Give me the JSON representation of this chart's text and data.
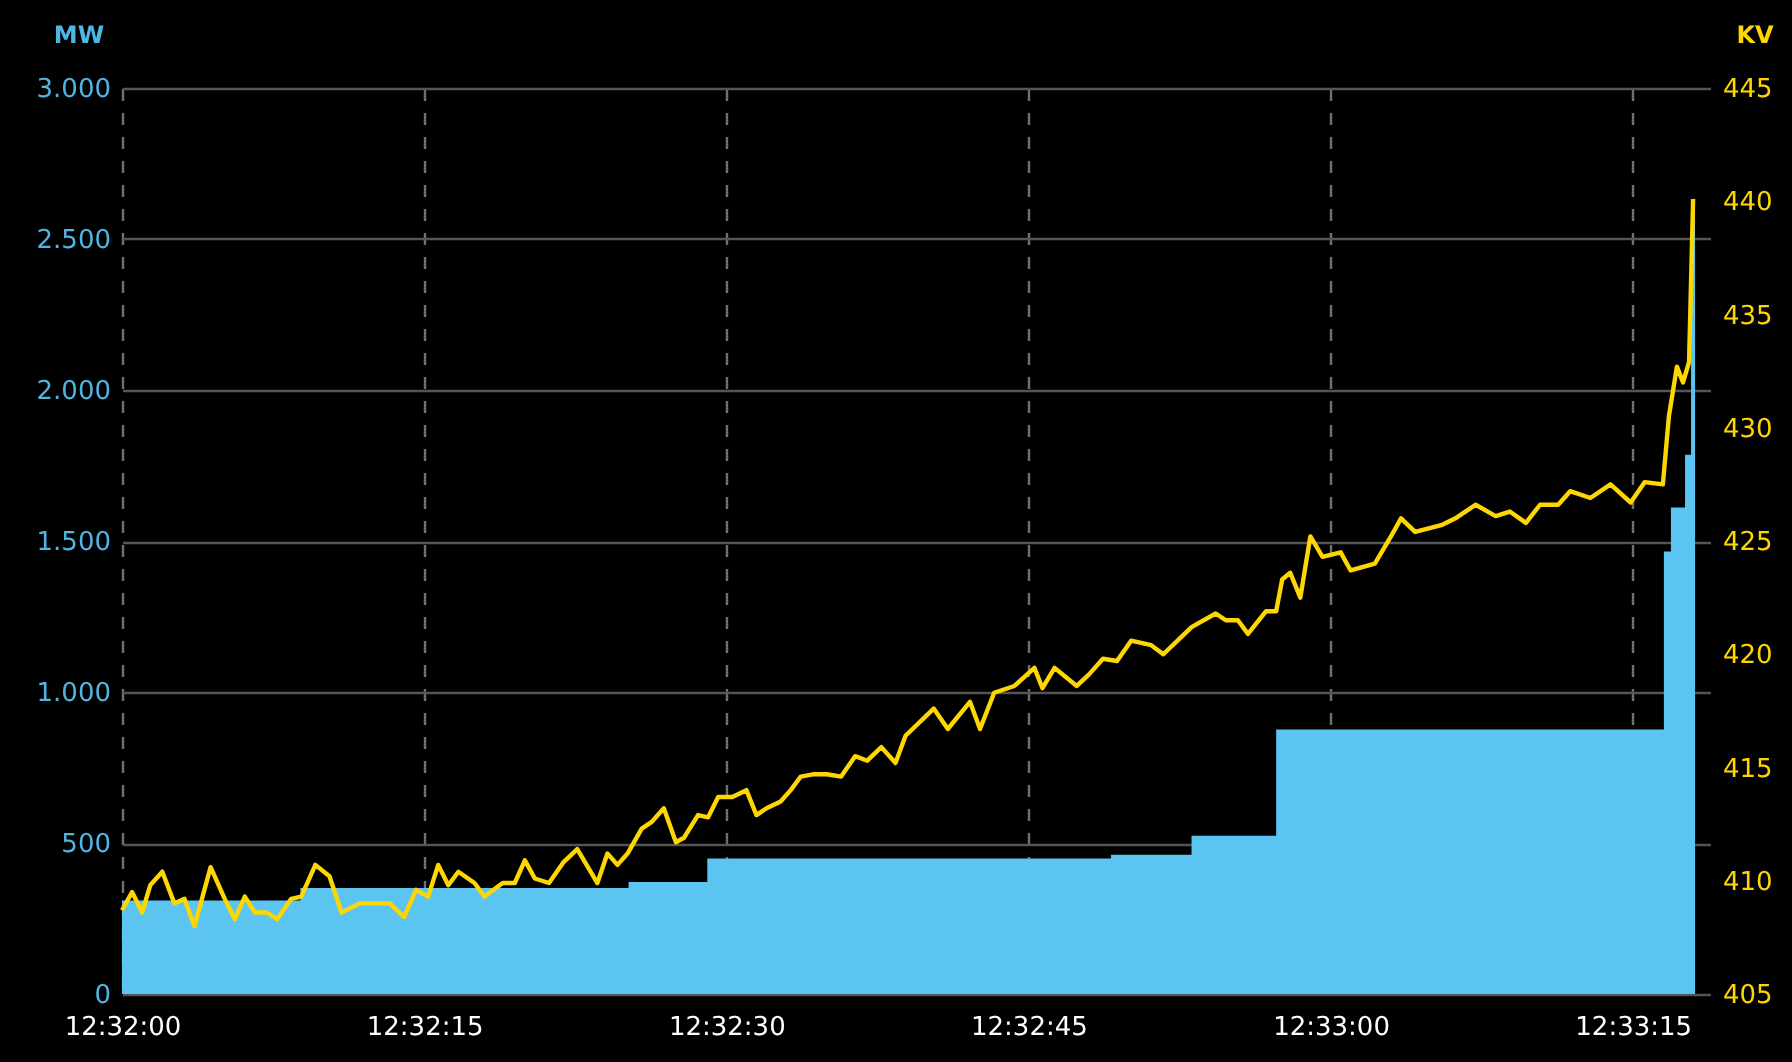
{
  "chart_data": {
    "type": "area",
    "ylabel": "MW",
    "y2label": "KV",
    "xlim": [
      12.533333,
      12.555233
    ],
    "xticks": [
      {
        "value": 12.533333,
        "label": "12:32:00"
      },
      {
        "value": 12.5375,
        "label": "12:32:15"
      },
      {
        "value": 12.541667,
        "label": "12:32:30"
      },
      {
        "value": 12.545833,
        "label": "12:32:45"
      },
      {
        "value": 12.55,
        "label": "12:33:00"
      },
      {
        "value": 12.554167,
        "label": "12:33:15"
      }
    ],
    "ylim": [
      0,
      3000
    ],
    "yticks": [
      0,
      {
        "value": 500,
        "label": "500"
      },
      {
        "value": 1000,
        "label": "1.000"
      },
      {
        "value": 1500,
        "label": "1.500"
      },
      {
        "value": 2000,
        "label": "2.000"
      },
      {
        "value": 2500,
        "label": "2.500"
      },
      {
        "value": 3000,
        "label": "3.000"
      }
    ],
    "y2lim": [
      405,
      445
    ],
    "y2ticks": [
      405,
      410,
      415,
      420,
      425,
      430,
      435,
      440,
      445
    ],
    "grid": true,
    "series": [
      {
        "color": "#5bc4f1",
        "x": [
          12.533333,
          12.535794,
          12.535794,
          12.540319,
          12.540319,
          12.541405,
          12.541405,
          12.546972,
          12.546972,
          12.548083,
          12.548083,
          12.54925,
          12.54925,
          12.554597,
          12.554597,
          12.554694,
          12.554694,
          12.554889,
          12.554889,
          12.554972,
          12.554972,
          12.555027
        ],
        "values": [
          310,
          310,
          351,
          351,
          371,
          371,
          449,
          449,
          461,
          461,
          524,
          524,
          876,
          876,
          1465,
          1465,
          1611,
          1611,
          1786,
          1786,
          2600,
          2600
        ]
      },
      {
        "type": "line",
        "axis": "y2",
        "color": "#ffd700",
        "x": [
          12.533333,
          12.533472,
          12.533611,
          12.533722,
          12.533889,
          12.534055,
          12.534194,
          12.534333,
          12.534444,
          12.534555,
          12.53475,
          12.534889,
          12.535027,
          12.535166,
          12.535333,
          12.535472,
          12.535666,
          12.535805,
          12.536,
          12.536194,
          12.536361,
          12.536611,
          12.536833,
          12.537027,
          12.537222,
          12.537389,
          12.537555,
          12.537694,
          12.537833,
          12.537972,
          12.538194,
          12.538333,
          12.538583,
          12.53875,
          12.538889,
          12.539027,
          12.539222,
          12.539416,
          12.539611,
          12.539777,
          12.539889,
          12.540027,
          12.540166,
          12.540305,
          12.5405,
          12.540639,
          12.540805,
          12.540972,
          12.541083,
          12.541277,
          12.541416,
          12.541555,
          12.54175,
          12.541944,
          12.542083,
          12.542222,
          12.542416,
          12.542555,
          12.542694,
          12.542861,
          12.543055,
          12.54325,
          12.543444,
          12.543611,
          12.543805,
          12.544,
          12.544139,
          12.544527,
          12.544722,
          12.545027,
          12.545166,
          12.545361,
          12.545639,
          12.545916,
          12.546027,
          12.546194,
          12.5465,
          12.546666,
          12.546861,
          12.547055,
          12.54725,
          12.547527,
          12.547694,
          12.548083,
          12.548416,
          12.548555,
          12.548722,
          12.548861,
          12.549111,
          12.54925,
          12.549333,
          12.549444,
          12.549583,
          12.549722,
          12.549889,
          12.550139,
          12.550277,
          12.550611,
          12.550833,
          12.550972,
          12.551166,
          12.551527,
          12.551722,
          12.552,
          12.552277,
          12.552472,
          12.552694,
          12.552889,
          12.553139,
          12.553305,
          12.553583,
          12.553861,
          12.554139,
          12.554333,
          12.554583,
          12.554666,
          12.554777,
          12.554861,
          12.554944,
          12.555
        ],
        "values": [
          408.7,
          409.5,
          408.6,
          409.8,
          410.4,
          409.0,
          409.2,
          408.0,
          409.3,
          410.6,
          409.2,
          408.3,
          409.3,
          408.6,
          408.6,
          408.3,
          409.2,
          409.3,
          410.7,
          410.2,
          408.6,
          409.0,
          409.0,
          409.0,
          408.4,
          409.6,
          409.3,
          410.7,
          409.8,
          410.4,
          409.9,
          409.3,
          409.9,
          409.9,
          410.9,
          410.1,
          409.9,
          410.8,
          411.4,
          410.5,
          409.9,
          411.2,
          410.7,
          411.2,
          412.3,
          412.6,
          413.2,
          411.7,
          411.9,
          412.9,
          412.8,
          413.7,
          413.7,
          414.0,
          412.9,
          413.2,
          413.5,
          414.0,
          414.6,
          414.7,
          414.7,
          414.6,
          415.5,
          415.3,
          415.9,
          415.2,
          416.4,
          417.6,
          416.7,
          417.9,
          416.7,
          418.3,
          418.6,
          419.4,
          418.5,
          419.4,
          418.6,
          419.1,
          419.8,
          419.7,
          420.6,
          420.4,
          420.0,
          421.2,
          421.8,
          421.5,
          421.5,
          420.9,
          421.9,
          421.9,
          423.3,
          423.6,
          422.5,
          425.2,
          424.3,
          424.5,
          423.7,
          424.0,
          425.2,
          426.0,
          425.4,
          425.7,
          426.0,
          426.6,
          426.1,
          426.3,
          425.8,
          426.6,
          426.6,
          427.2,
          426.9,
          427.5,
          426.7,
          427.6,
          427.5,
          430.5,
          432.7,
          432.0,
          432.9,
          440.1
        ]
      }
    ]
  }
}
